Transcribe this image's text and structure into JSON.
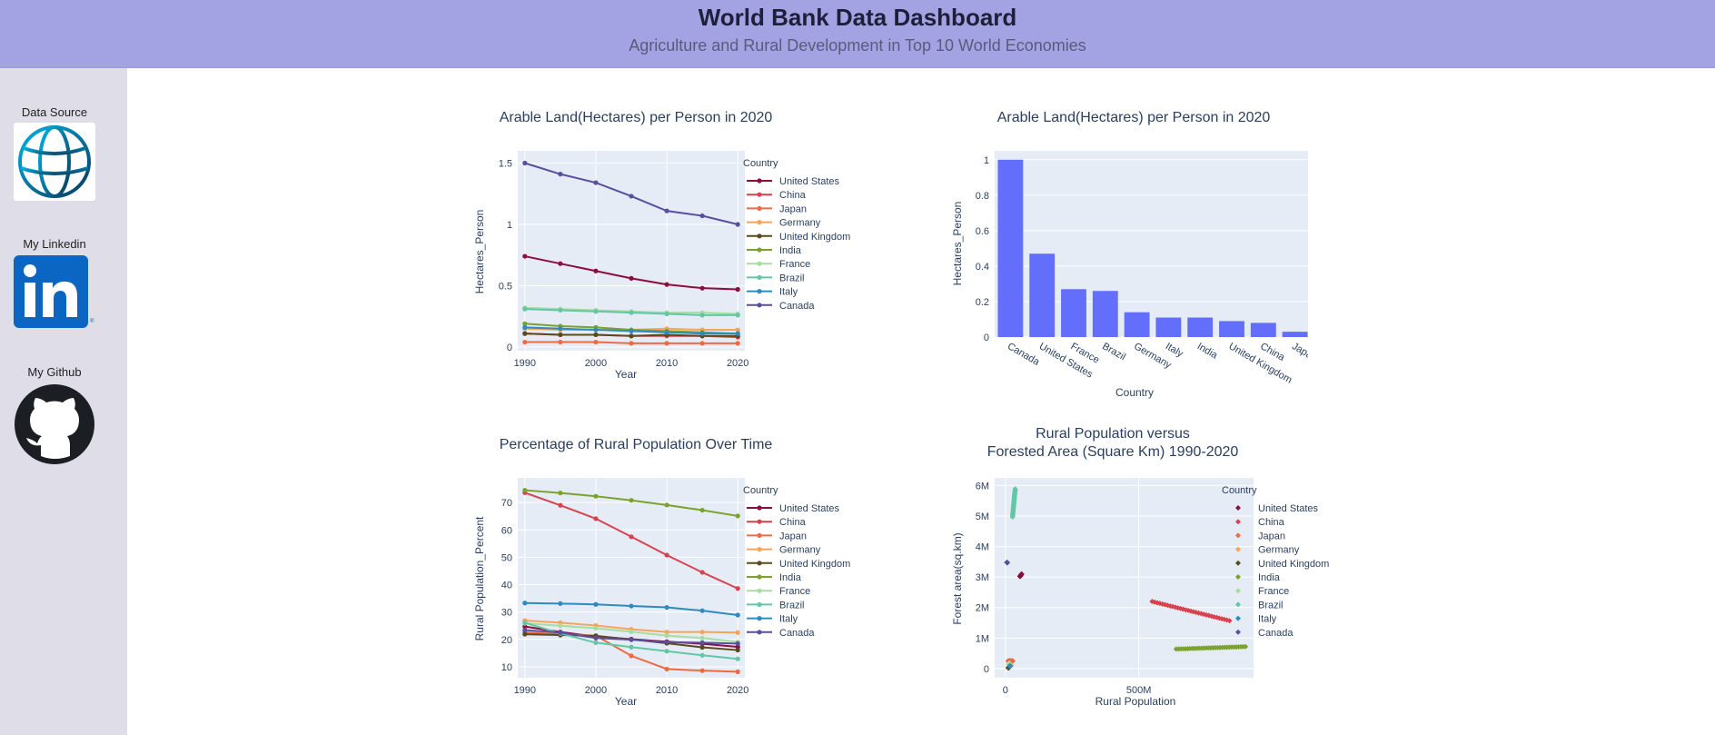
{
  "header": {
    "title": "World Bank Data Dashboard",
    "subtitle": "Agriculture and Rural Development in Top 10 World Economies"
  },
  "sidebar": {
    "items": [
      {
        "label": "Data Source",
        "icon": "globe-icon"
      },
      {
        "label": "My Linkedin",
        "icon": "linkedin-icon"
      },
      {
        "label": "My Github",
        "icon": "github-icon"
      }
    ]
  },
  "colors": {
    "United States": "#8c0d3f",
    "China": "#d8424e",
    "Japan": "#ee6a41",
    "Germany": "#f5a459",
    "United Kingdom": "#5b4a1e",
    "India": "#7ba22c",
    "France": "#a8dca1",
    "Brazil": "#63c6a6",
    "Italy": "#2e8bc0",
    "Canada": "#5a4e9e",
    "bar": "#636efa",
    "plot_bg": "#e5ecf6"
  },
  "chart_data": [
    {
      "id": "arable-line",
      "type": "line",
      "title": "Arable Land(Hectares) per Person in 2020",
      "xlabel": "Year",
      "ylabel": "Hectares_Person",
      "legend_title": "Country",
      "xlim": [
        1989,
        2021
      ],
      "ylim": [
        -0.03,
        1.6
      ],
      "xticks": [
        1990,
        2000,
        2010,
        2020
      ],
      "yticks": [
        0,
        0.5,
        1,
        1.5
      ],
      "ytick_labels": [
        "0",
        "0.5",
        "1",
        "1.5"
      ],
      "series": [
        {
          "name": "United States",
          "x": [
            1990,
            1995,
            2000,
            2005,
            2010,
            2015,
            2020
          ],
          "values": [
            0.74,
            0.68,
            0.62,
            0.56,
            0.51,
            0.48,
            0.47
          ]
        },
        {
          "name": "China",
          "x": [
            1990,
            1995,
            2000,
            2005,
            2010,
            2015,
            2020
          ],
          "values": [
            0.11,
            0.1,
            0.1,
            0.09,
            0.09,
            0.09,
            0.08
          ]
        },
        {
          "name": "Japan",
          "x": [
            1990,
            1995,
            2000,
            2005,
            2010,
            2015,
            2020
          ],
          "values": [
            0.04,
            0.04,
            0.04,
            0.03,
            0.03,
            0.03,
            0.03
          ]
        },
        {
          "name": "Germany",
          "x": [
            1990,
            1995,
            2000,
            2005,
            2010,
            2015,
            2020
          ],
          "values": [
            0.15,
            0.14,
            0.14,
            0.14,
            0.15,
            0.14,
            0.14
          ]
        },
        {
          "name": "United Kingdom",
          "x": [
            1990,
            1995,
            2000,
            2005,
            2010,
            2015,
            2020
          ],
          "values": [
            0.11,
            0.1,
            0.1,
            0.09,
            0.1,
            0.09,
            0.09
          ]
        },
        {
          "name": "India",
          "x": [
            1990,
            1995,
            2000,
            2005,
            2010,
            2015,
            2020
          ],
          "values": [
            0.19,
            0.17,
            0.16,
            0.14,
            0.13,
            0.12,
            0.11
          ]
        },
        {
          "name": "France",
          "x": [
            1990,
            1995,
            2000,
            2005,
            2010,
            2015,
            2020
          ],
          "values": [
            0.32,
            0.31,
            0.3,
            0.29,
            0.28,
            0.28,
            0.27
          ]
        },
        {
          "name": "Brazil",
          "x": [
            1990,
            1995,
            2000,
            2005,
            2010,
            2015,
            2020
          ],
          "values": [
            0.31,
            0.3,
            0.29,
            0.28,
            0.27,
            0.26,
            0.26
          ]
        },
        {
          "name": "Italy",
          "x": [
            1990,
            1995,
            2000,
            2005,
            2010,
            2015,
            2020
          ],
          "values": [
            0.16,
            0.15,
            0.14,
            0.13,
            0.12,
            0.11,
            0.11
          ]
        },
        {
          "name": "Canada",
          "x": [
            1990,
            1995,
            2000,
            2005,
            2010,
            2015,
            2020
          ],
          "values": [
            1.5,
            1.41,
            1.34,
            1.23,
            1.11,
            1.07,
            1.0
          ]
        }
      ]
    },
    {
      "id": "arable-bar",
      "type": "bar",
      "title": "Arable Land(Hectares) per Person in 2020",
      "xlabel": "Country",
      "ylabel": "Hectares_Person",
      "ylim": [
        0,
        1.05
      ],
      "yticks": [
        0,
        0.2,
        0.4,
        0.6,
        0.8,
        1
      ],
      "ytick_labels": [
        "0",
        "0.2",
        "0.4",
        "0.6",
        "0.8",
        "1"
      ],
      "categories": [
        "Canada",
        "United States",
        "France",
        "Brazil",
        "Germany",
        "Italy",
        "India",
        "United Kingdom",
        "China",
        "Japan"
      ],
      "values": [
        1.0,
        0.47,
        0.27,
        0.26,
        0.14,
        0.11,
        0.11,
        0.09,
        0.08,
        0.03
      ]
    },
    {
      "id": "rural-line",
      "type": "line",
      "title": "Percentage of Rural Population Over Time",
      "xlabel": "Year",
      "ylabel": "Rural Population_Percent",
      "legend_title": "Country",
      "xlim": [
        1989,
        2021
      ],
      "ylim": [
        6,
        79
      ],
      "xticks": [
        1990,
        2000,
        2010,
        2020
      ],
      "yticks": [
        10,
        20,
        30,
        40,
        50,
        60,
        70
      ],
      "ytick_labels": [
        "10",
        "20",
        "30",
        "40",
        "50",
        "60",
        "70"
      ],
      "series": [
        {
          "name": "United States",
          "x": [
            1990,
            1995,
            2000,
            2005,
            2010,
            2015,
            2020
          ],
          "values": [
            24.7,
            22.7,
            21.0,
            20.1,
            19.2,
            18.4,
            17.3
          ]
        },
        {
          "name": "China",
          "x": [
            1990,
            1995,
            2000,
            2005,
            2010,
            2015,
            2020
          ],
          "values": [
            73.6,
            69,
            64.1,
            57.5,
            50.8,
            44.5,
            38.6
          ]
        },
        {
          "name": "Japan",
          "x": [
            1990,
            1995,
            2000,
            2005,
            2010,
            2015,
            2020
          ],
          "values": [
            22.6,
            21.9,
            21.4,
            14.0,
            9.2,
            8.6,
            8.2
          ]
        },
        {
          "name": "Germany",
          "x": [
            1990,
            1995,
            2000,
            2005,
            2010,
            2015,
            2020
          ],
          "values": [
            26.9,
            26.1,
            25.1,
            23.7,
            22.7,
            22.7,
            22.5
          ]
        },
        {
          "name": "United Kingdom",
          "x": [
            1990,
            1995,
            2000,
            2005,
            2010,
            2015,
            2020
          ],
          "values": [
            21.9,
            21.6,
            21.3,
            20.0,
            18.6,
            17.1,
            16.1
          ]
        },
        {
          "name": "India",
          "x": [
            1990,
            1995,
            2000,
            2005,
            2010,
            2015,
            2020
          ],
          "values": [
            74.5,
            73.5,
            72.3,
            70.8,
            69.1,
            67.2,
            65.1
          ]
        },
        {
          "name": "France",
          "x": [
            1990,
            1995,
            2000,
            2005,
            2010,
            2015,
            2020
          ],
          "values": [
            25.9,
            25.0,
            24.1,
            22.8,
            21.4,
            20.5,
            19.1
          ]
        },
        {
          "name": "Brazil",
          "x": [
            1990,
            1995,
            2000,
            2005,
            2010,
            2015,
            2020
          ],
          "values": [
            26.1,
            22.2,
            18.8,
            17.2,
            15.7,
            14.2,
            12.9
          ]
        },
        {
          "name": "Italy",
          "x": [
            1990,
            1995,
            2000,
            2005,
            2010,
            2015,
            2020
          ],
          "values": [
            33.3,
            33.1,
            32.8,
            32.2,
            31.7,
            30.5,
            28.9
          ]
        },
        {
          "name": "Canada",
          "x": [
            1990,
            1995,
            2000,
            2005,
            2010,
            2015,
            2020
          ],
          "values": [
            23.4,
            22.5,
            20.5,
            19.9,
            19.0,
            18.8,
            18.5
          ]
        }
      ]
    },
    {
      "id": "rural-forest-scatter",
      "type": "scatter",
      "title": [
        "Rural Population versus",
        "Forested Area (Square Km) 1990-2020"
      ],
      "xlabel": "Rural Population",
      "ylabel": "Forest area(sq.km)",
      "legend_title": "Country",
      "xlim": [
        -40000000,
        930000000
      ],
      "ylim": [
        -300000,
        6250000
      ],
      "xticks": [
        0,
        500000000
      ],
      "xtick_labels": [
        "0",
        "500M"
      ],
      "yticks": [
        0,
        1000000,
        2000000,
        3000000,
        4000000,
        5000000,
        6000000
      ],
      "ytick_labels": [
        "0",
        "1M",
        "2M",
        "3M",
        "4M",
        "5M",
        "6M"
      ],
      "series": [
        {
          "name": "United States",
          "x_range": [
            55000000,
            61000000
          ],
          "y_range": [
            3020000,
            3100000
          ],
          "n": 31
        },
        {
          "name": "China",
          "x_range": [
            840000000,
            550000000
          ],
          "y_range": [
            1570000,
            2200000
          ],
          "n": 31
        },
        {
          "name": "Japan",
          "x_range": [
            10000000,
            28000000
          ],
          "y_range": [
            248000,
            249000
          ],
          "n": 31
        },
        {
          "name": "Germany",
          "x_range": [
            18000000,
            22000000
          ],
          "y_range": [
            113000,
            114000
          ],
          "n": 31
        },
        {
          "name": "United Kingdom",
          "x_range": [
            11000000,
            13000000
          ],
          "y_range": [
            31000,
            32000
          ],
          "n": 31
        },
        {
          "name": "India",
          "x_range": [
            640000000,
            900000000
          ],
          "y_range": [
            640000,
            720000
          ],
          "n": 31
        },
        {
          "name": "France",
          "x_range": [
            12000000,
            15000000
          ],
          "y_range": [
            144000,
            172000
          ],
          "n": 31
        },
        {
          "name": "Brazil",
          "x_range": [
            37000000,
            27000000
          ],
          "y_range": [
            5890000,
            4970000
          ],
          "n": 31
        },
        {
          "name": "Italy",
          "x_range": [
            18000000,
            17000000
          ],
          "y_range": [
            76000,
            96000
          ],
          "n": 31
        },
        {
          "name": "Canada",
          "x_range": [
            6500000,
            7000000
          ],
          "y_range": [
            3480000,
            3470000
          ],
          "n": 31
        }
      ]
    }
  ]
}
